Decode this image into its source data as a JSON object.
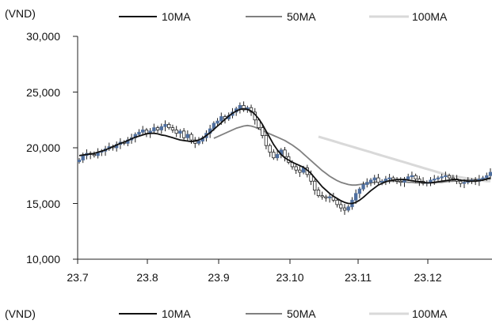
{
  "chart_data": {
    "type": "candlestick",
    "unit_label": "(VND)",
    "y_ticks": [
      "30,000",
      "25,000",
      "20,000",
      "15,000",
      "10,000"
    ],
    "y_tick_values": [
      30000,
      25000,
      20000,
      15000,
      10000
    ],
    "ylim": [
      10000,
      30000
    ],
    "x_ticks": [
      "23.7",
      "23.8",
      "23.9",
      "23.10",
      "23.11",
      "23.12"
    ],
    "legend": [
      {
        "label": "10MA",
        "color": "#111111"
      },
      {
        "label": "50MA",
        "color": "#808080"
      },
      {
        "label": "100MA",
        "color": "#d9d9d9"
      }
    ],
    "colors": {
      "up_candle": "#4f6f9f",
      "down_candle": "#ffffff",
      "candle_outline": "#222222"
    },
    "candles_close": [
      18900,
      19300,
      19500,
      19400,
      19300,
      19600,
      19700,
      19900,
      20100,
      20000,
      20300,
      20500,
      20400,
      20700,
      20900,
      21200,
      21400,
      21600,
      21300,
      21500,
      21800,
      21600,
      21900,
      22100,
      21800,
      21600,
      21300,
      21500,
      20900,
      21200,
      20700,
      20400,
      20600,
      20900,
      21300,
      21700,
      22200,
      22400,
      22800,
      22600,
      22900,
      23200,
      23500,
      23800,
      23400,
      23600,
      23200,
      22500,
      21800,
      21100,
      20200,
      19600,
      19100,
      19400,
      19800,
      19200,
      18700,
      18300,
      18000,
      17800,
      18200,
      17600,
      17000,
      16200,
      15700,
      15600,
      15500,
      15600,
      15300,
      14900,
      14600,
      14400,
      14700,
      15300,
      15900,
      16300,
      16700,
      16900,
      17100,
      17300,
      16900,
      17000,
      17200,
      17300,
      17100,
      17000,
      16900,
      17200,
      17400,
      17500,
      17200,
      17000,
      16800,
      16900,
      17100,
      17200,
      17300,
      17400,
      17500,
      17300,
      17200,
      17000,
      16800,
      16900,
      17000,
      17100,
      17000,
      17200,
      17300,
      17500,
      17800
    ],
    "ma10": [
      19300,
      19350,
      19400,
      19450,
      19500,
      19600,
      19700,
      19800,
      19950,
      20100,
      20250,
      20400,
      20500,
      20650,
      20800,
      20950,
      21050,
      21150,
      21250,
      21300,
      21300,
      21250,
      21150,
      21100,
      21000,
      20900,
      20800,
      20700,
      20650,
      20600,
      20550,
      20600,
      20700,
      20850,
      21100,
      21350,
      21650,
      21950,
      22250,
      22550,
      22850,
      23100,
      23300,
      23450,
      23500,
      23450,
      23300,
      23000,
      22600,
      22100,
      21500,
      20900,
      20300,
      19800,
      19400,
      19100,
      18900,
      18700,
      18550,
      18400,
      18250,
      18000,
      17700,
      17300,
      16900,
      16500,
      16200,
      15900,
      15650,
      15450,
      15250,
      15100,
      15000,
      15000,
      15100,
      15300,
      15550,
      15850,
      16150,
      16400,
      16650,
      16800,
      16950,
      17050,
      17100,
      17150,
      17150,
      17150,
      17100,
      17050,
      17000,
      16950,
      16900,
      16850,
      16850,
      16900,
      16950,
      17000,
      17050,
      17100,
      17150,
      17150,
      17100,
      17050,
      17000,
      17000,
      17000,
      17050,
      17100,
      17200,
      17300
    ],
    "ma50": [
      null,
      null,
      null,
      null,
      null,
      null,
      null,
      null,
      null,
      null,
      null,
      null,
      null,
      null,
      null,
      null,
      null,
      null,
      null,
      null,
      null,
      null,
      null,
      null,
      null,
      null,
      null,
      null,
      null,
      null,
      null,
      null,
      null,
      null,
      null,
      null,
      20850,
      21000,
      21150,
      21300,
      21450,
      21600,
      21750,
      21850,
      21950,
      22000,
      21950,
      21850,
      21700,
      21550,
      21400,
      21250,
      21100,
      20950,
      20800,
      20650,
      20450,
      20250,
      20000,
      19750,
      19450,
      19150,
      18850,
      18550,
      18250,
      17950,
      17700,
      17450,
      17250,
      17050,
      16900,
      16800,
      16700,
      16650,
      16650,
      16700,
      16750,
      16800,
      16850,
      16900,
      16950,
      16950,
      17000,
      17000,
      17000,
      17000,
      16950,
      16950,
      16900,
      16900,
      16850,
      16850,
      16850,
      16850,
      16850,
      16850,
      16900,
      16900,
      16950,
      17000,
      17000,
      17050,
      17050,
      17100,
      17100,
      17100,
      17150,
      17150,
      17150,
      17200,
      17200
    ],
    "ma100": [
      null,
      null,
      null,
      null,
      null,
      null,
      null,
      null,
      null,
      null,
      null,
      null,
      null,
      null,
      null,
      null,
      null,
      null,
      null,
      null,
      null,
      null,
      null,
      null,
      null,
      null,
      null,
      null,
      null,
      null,
      null,
      null,
      null,
      null,
      null,
      null,
      null,
      null,
      null,
      null,
      null,
      null,
      null,
      null,
      null,
      null,
      null,
      null,
      null,
      null,
      null,
      null,
      null,
      null,
      null,
      null,
      null,
      null,
      null,
      null,
      null,
      null,
      null,
      null,
      21000,
      20900,
      20800,
      20700,
      20600,
      20500,
      20400,
      20300,
      20200,
      20100,
      20000,
      19900,
      19800,
      19700,
      19600,
      19500,
      19400,
      19300,
      19200,
      19100,
      19000,
      18900,
      18800,
      18700,
      18600,
      18500,
      18400,
      18300,
      18200,
      18100,
      18000,
      17900,
      17800,
      17700,
      17600,
      17500,
      17450,
      17400,
      17350,
      17300,
      17250,
      17200,
      17150,
      17100,
      17050,
      17000,
      17000
    ]
  }
}
